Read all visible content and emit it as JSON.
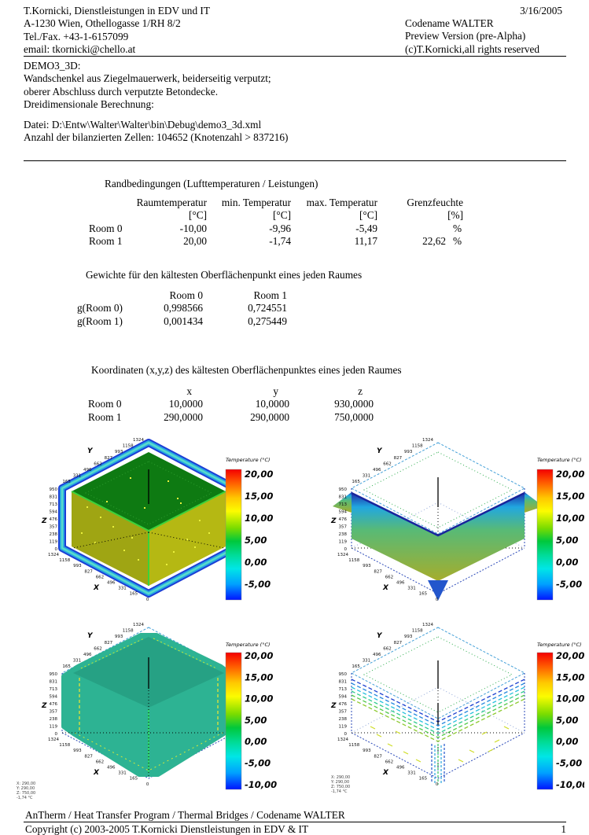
{
  "header": {
    "left_lines": [
      "T.Kornicki, Dienstleistungen in EDV und IT",
      "A-1230 Wien, Othellogasse 1/RH 8/2",
      "Tel./Fax. +43-1-6157099",
      "email: tkornicki@chello.at"
    ],
    "date": "3/16/2005",
    "right_lines": [
      "Codename WALTER",
      "Preview Version (pre-Alpha)",
      "(c)T.Kornicki,all rights reserved"
    ]
  },
  "description": {
    "lines": [
      "DEMO3_3D:",
      "Wandschenkel aus Ziegelmauerwerk, beiderseitig verputzt;",
      "oberer Abschluss durch verputzte Betondecke.",
      "Dreidimensionale Berechnung:"
    ],
    "file_line": "Datei: D:\\Entw\\Walter\\Walter\\bin\\Debug\\demo3_3d.xml",
    "cells_line": "Anzahl der bilanzierten Zellen: 104652 (Knotenzahl > 837216)"
  },
  "boundary_table": {
    "title": "Randbedingungen (Lufttemperaturen / Leistungen)",
    "col_headers": [
      "Raumtemperatur",
      "min. Temperatur",
      "max. Temperatur",
      "Grenzfeuchte"
    ],
    "units": [
      "[°C]",
      "[°C]",
      "[°C]",
      "[%]"
    ],
    "rows": [
      {
        "label": "Room 0",
        "raumtemperatur": "-10,00",
        "min_temp": "-9,96",
        "max_temp": "-5,49",
        "grenzfeuchte": "",
        "percent": "%"
      },
      {
        "label": "Room 1",
        "raumtemperatur": "20,00",
        "min_temp": "-1,74",
        "max_temp": "11,17",
        "grenzfeuchte": "22,62",
        "percent": "%"
      }
    ]
  },
  "weights_table": {
    "title": "Gewichte für den kältesten Oberflächenpunkt eines jeden Raumes",
    "col_headers": [
      "Room 0",
      "Room 1"
    ],
    "rows": [
      {
        "label": "g(Room 0)",
        "room0": "0,998566",
        "room1": "0,724551"
      },
      {
        "label": "g(Room 1)",
        "room0": "0,001434",
        "room1": "0,275449"
      }
    ]
  },
  "coords_table": {
    "title": "Koordinaten (x,y,z) des kältesten Oberflächenpunktes eines jeden Raumes",
    "col_headers": [
      "x",
      "y",
      "z"
    ],
    "rows": [
      {
        "label": "Room 0",
        "x": "10,0000",
        "y": "10,0000",
        "z": "930,0000"
      },
      {
        "label": "Room 1",
        "x": "290,0000",
        "y": "290,0000",
        "z": "750,0000"
      }
    ]
  },
  "plots": {
    "axes": {
      "x_label": "X",
      "y_label": "Y",
      "z_label": "Z",
      "y_ticks": [
        "1324",
        "1158",
        "993",
        "827",
        "662",
        "496",
        "331",
        "165"
      ],
      "z_ticks": [
        "950",
        "831",
        "713",
        "594",
        "476",
        "357",
        "238",
        "119",
        "0"
      ],
      "x_ticks": [
        "1324",
        "1158",
        "993",
        "827",
        "662",
        "496",
        "331",
        "165",
        "0"
      ]
    },
    "legend_title": "Temperature (°C)",
    "legend_scale_top": [
      "20,00",
      "15,00",
      "10,00",
      "5,00",
      "0,00",
      "-5,00"
    ],
    "legend_scale_bottom": [
      "20,00",
      "15,00",
      "10,00",
      "5,00",
      "0,00",
      "-5,00",
      "-10,00"
    ],
    "probe_annotation": [
      "X: 290,00",
      "Y: 290,00",
      "Z: 750,00",
      "-1,74 °C"
    ]
  },
  "footer": {
    "program_line": "AnTherm / Heat Transfer Program / Thermal Bridges / Codename WALTER",
    "copyright_line": "Copyright (c) 2003-2005 T.Kornicki Dienstleistungen in EDV & IT",
    "page_number": "1"
  }
}
